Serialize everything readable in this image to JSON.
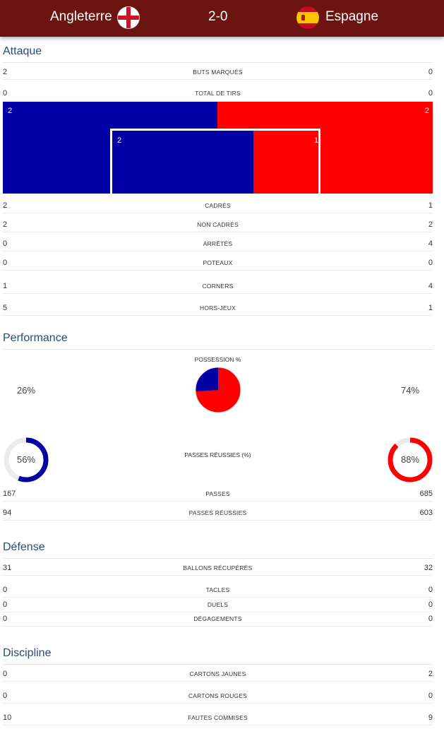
{
  "header": {
    "home_team": "Angleterre",
    "away_team": "Espagne",
    "score": "2-0",
    "home_flag_icon": "england-flag-icon",
    "away_flag_icon": "spain-flag-icon",
    "background": "#6b1410"
  },
  "colors": {
    "home": "#0000a5",
    "away": "#ff0000",
    "section_title": "#2b4a7a"
  },
  "attaque": {
    "title": "Attaque",
    "buts": {
      "label": "BUTS MARQUÉS",
      "home": "2",
      "away": "0"
    },
    "tirs": {
      "label": "TOTAL DE TIRS",
      "home": "0",
      "away": "0"
    },
    "goal_map": {
      "outside_home": "2",
      "outside_away": "2",
      "inside_home": "2",
      "inside_away": "1"
    },
    "cadres": {
      "label": "CADRÉS",
      "home": "2",
      "away": "1"
    },
    "non_cadres": {
      "label": "NON CADRÉS",
      "home": "2",
      "away": "2"
    },
    "arretes": {
      "label": "ARRÊTÉS",
      "home": "0",
      "away": "4"
    },
    "poteaux": {
      "label": "POTEAUX",
      "home": "0",
      "away": "0"
    },
    "corners": {
      "label": "CORNERS",
      "home": "1",
      "away": "4"
    },
    "hors_jeu": {
      "label": "HORS-JEUX",
      "home": "5",
      "away": "1"
    }
  },
  "performance": {
    "title": "Performance",
    "possession": {
      "label": "POSSESSION %",
      "home": "26%",
      "away": "74%",
      "home_value": 26,
      "away_value": 74
    },
    "passes_pct": {
      "label": "PASSES RÉUSSIES (%)",
      "home": "56%",
      "away": "88%",
      "home_value": 56,
      "away_value": 88
    },
    "passes": {
      "label": "PASSES",
      "home": "167",
      "away": "685"
    },
    "passes_reussies": {
      "label": "PASSES RÉUSSIES",
      "home": "94",
      "away": "603"
    }
  },
  "defense": {
    "title": "Défense",
    "ballons": {
      "label": "BALLONS RÉCUPÉRÉS",
      "home": "31",
      "away": "32"
    },
    "tacles": {
      "label": "TACLES",
      "home": "0",
      "away": "0"
    },
    "duels": {
      "label": "DUELS",
      "home": "0",
      "away": "0"
    },
    "degagements": {
      "label": "DÉGAGEMENTS",
      "home": "0",
      "away": "0"
    }
  },
  "discipline": {
    "title": "Discipline",
    "jaunes": {
      "label": "CARTONS JAUNES",
      "home": "0",
      "away": "2"
    },
    "rouges": {
      "label": "CARTONS ROUGES",
      "home": "0",
      "away": "0"
    },
    "fautes": {
      "label": "FAUTES COMMISES",
      "home": "10",
      "away": "9"
    }
  }
}
